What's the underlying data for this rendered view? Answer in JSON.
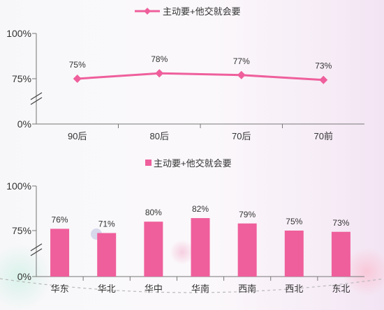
{
  "colors": {
    "accent": "#ef5f9c",
    "axis": "#777777"
  },
  "chart_data": [
    {
      "type": "line",
      "legend": "主动要+他交就会要",
      "categories": [
        "90后",
        "80后",
        "70后",
        "70前"
      ],
      "series": [
        {
          "name": "主动要+他交就会要",
          "values": [
            75,
            78,
            77,
            73
          ],
          "labels": [
            "75%",
            "78%",
            "77%",
            "73%"
          ]
        }
      ],
      "ytick_labels": [
        "100%",
        "75%",
        "0%"
      ],
      "y_axis_break": true,
      "legend_position": "top-center"
    },
    {
      "type": "bar",
      "legend": "主动要+他交就会要",
      "categories": [
        "华东",
        "华北",
        "华中",
        "华南",
        "西南",
        "西北",
        "东北"
      ],
      "series": [
        {
          "name": "主动要+他交就会要",
          "values": [
            76,
            71,
            80,
            82,
            79,
            75,
            73
          ],
          "labels": [
            "76%",
            "71%",
            "80%",
            "82%",
            "79%",
            "75%",
            "73%"
          ]
        }
      ],
      "ytick_labels": [
        "100%",
        "75%",
        "0%"
      ],
      "y_axis_break": true,
      "legend_position": "top-center"
    }
  ]
}
